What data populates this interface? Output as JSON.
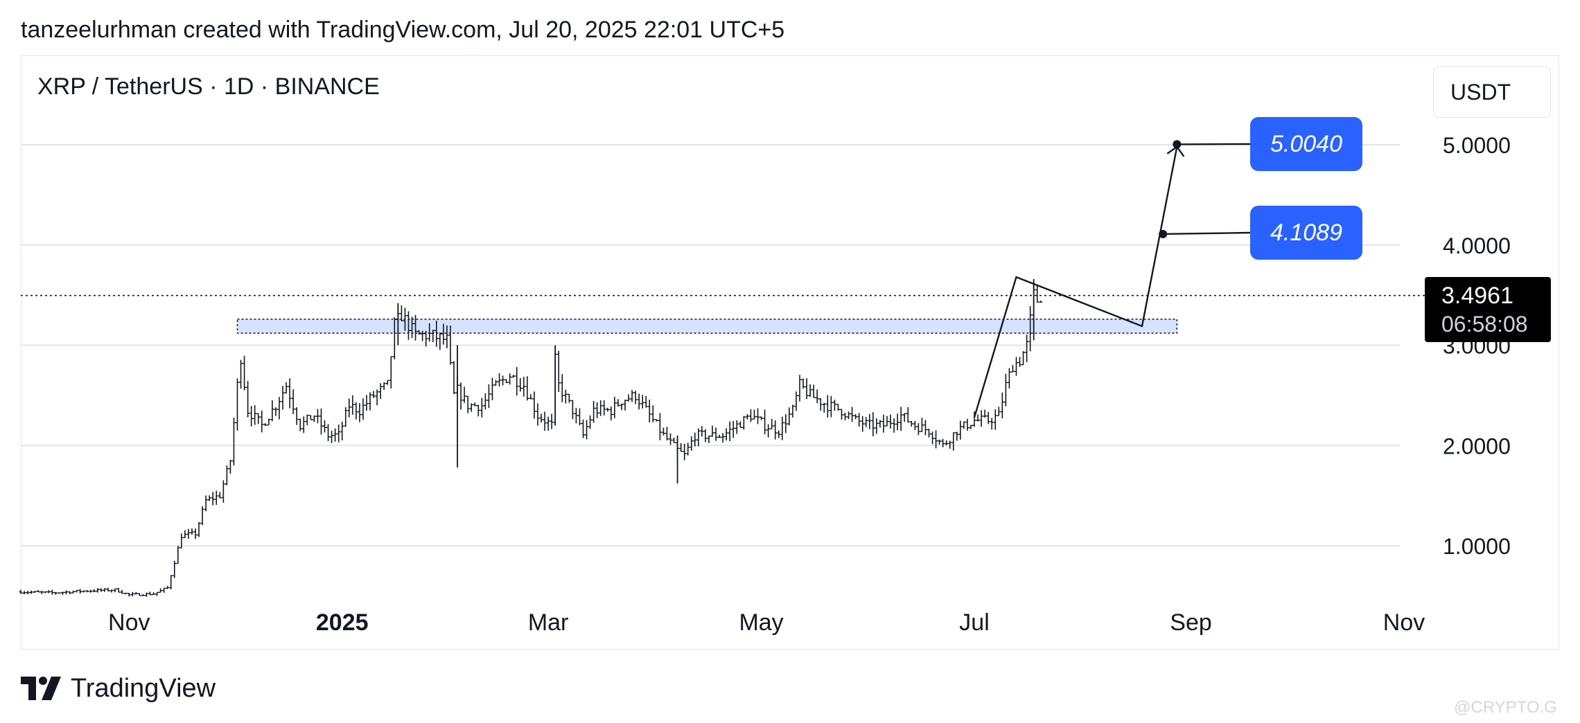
{
  "header": {
    "caption": "tanzeelurhman created with TradingView.com, Jul 20, 2025 22:01 UTC+5"
  },
  "chart": {
    "symbol_title": "XRP / TetherUS · 1D · BINANCE",
    "currency": "USDT",
    "last_price": "3.4961",
    "countdown": "06:58:08",
    "targets": [
      {
        "label": "5.0040",
        "value": 5.004
      },
      {
        "label": "4.1089",
        "value": 4.1089
      }
    ],
    "colors": {
      "accent": "#2962ff",
      "zone_fill": "#d6e2ff",
      "grid": "#e0e3eb",
      "bars": "#131722",
      "price_label_bg": "#000000"
    }
  },
  "footer": {
    "brand": "TradingView",
    "watermark": "@CRYPTO.G"
  },
  "chart_data": {
    "type": "ohlc-bar",
    "title": "XRP / TetherUS · 1D · BINANCE",
    "xlabel": "",
    "ylabel": "",
    "x_ticks": [
      {
        "label": "Nov",
        "date": "2024-11-01",
        "bold": false
      },
      {
        "label": "2025",
        "date": "2025-01-01",
        "bold": true
      },
      {
        "label": "Mar",
        "date": "2025-03-01",
        "bold": false
      },
      {
        "label": "May",
        "date": "2025-05-01",
        "bold": false
      },
      {
        "label": "Jul",
        "date": "2025-07-01",
        "bold": false
      },
      {
        "label": "Sep",
        "date": "2025-09-01",
        "bold": false
      },
      {
        "label": "Nov",
        "date": "2025-11-01",
        "bold": false
      }
    ],
    "y_ticks": [
      {
        "label": "1.0000",
        "value": 1.0
      },
      {
        "label": "2.0000",
        "value": 2.0
      },
      {
        "label": "3.0000",
        "value": 3.0
      },
      {
        "label": "4.0000",
        "value": 4.0
      },
      {
        "label": "5.0000",
        "value": 5.0
      }
    ],
    "ylim": [
      0.45,
      5.95
    ],
    "xlim": [
      "2024-10-01",
      "2025-11-01"
    ],
    "grid": "horizontal",
    "current_price": 3.4961,
    "support_zone": {
      "from": "2024-12-02",
      "to": "2025-08-28",
      "low": 3.12,
      "high": 3.26
    },
    "projection_path": [
      {
        "date": "2025-07-01",
        "price": 2.28
      },
      {
        "date": "2025-07-13",
        "price": 3.68
      },
      {
        "date": "2025-08-18",
        "price": 3.19
      },
      {
        "date": "2025-08-28",
        "price": 4.98
      }
    ],
    "target_markers": [
      {
        "date": "2025-08-28",
        "price": 5.004,
        "label": "5.0040"
      },
      {
        "date": "2025-08-24",
        "price": 4.1089,
        "label": "4.1089"
      }
    ],
    "price_path": [
      [
        "2024-10-01",
        0.54
      ],
      [
        "2024-10-10",
        0.53
      ],
      [
        "2024-10-20",
        0.55
      ],
      [
        "2024-10-28",
        0.56
      ],
      [
        "2024-11-01",
        0.51
      ],
      [
        "2024-11-08",
        0.52
      ],
      [
        "2024-11-12",
        0.58
      ],
      [
        "2024-11-16",
        1.1
      ],
      [
        "2024-11-20",
        1.12
      ],
      [
        "2024-11-23",
        1.45
      ],
      [
        "2024-11-27",
        1.5
      ],
      [
        "2024-11-30",
        1.85
      ],
      [
        "2024-12-02",
        2.6
      ],
      [
        "2024-12-03",
        2.88
      ],
      [
        "2024-12-05",
        2.35
      ],
      [
        "2024-12-09",
        2.2
      ],
      [
        "2024-12-13",
        2.4
      ],
      [
        "2024-12-16",
        2.6
      ],
      [
        "2024-12-20",
        2.2
      ],
      [
        "2024-12-24",
        2.3
      ],
      [
        "2024-12-28",
        2.1
      ],
      [
        "2024-12-31",
        2.1
      ],
      [
        "2025-01-03",
        2.4
      ],
      [
        "2025-01-06",
        2.35
      ],
      [
        "2025-01-10",
        2.5
      ],
      [
        "2025-01-14",
        2.6
      ],
      [
        "2025-01-16",
        3.2
      ],
      [
        "2025-01-18",
        3.3
      ],
      [
        "2025-01-22",
        3.1
      ],
      [
        "2025-01-26",
        3.1
      ],
      [
        "2025-01-31",
        3.05
      ],
      [
        "2025-02-02",
        2.5
      ],
      [
        "2025-02-03",
        2.55
      ],
      [
        "2025-02-06",
        2.4
      ],
      [
        "2025-02-10",
        2.4
      ],
      [
        "2025-02-14",
        2.6
      ],
      [
        "2025-02-18",
        2.7
      ],
      [
        "2025-02-22",
        2.6
      ],
      [
        "2025-02-26",
        2.3
      ],
      [
        "2025-03-02",
        2.2
      ],
      [
        "2025-03-03",
        2.85
      ],
      [
        "2025-03-04",
        2.6
      ],
      [
        "2025-03-08",
        2.35
      ],
      [
        "2025-03-11",
        2.1
      ],
      [
        "2025-03-14",
        2.35
      ],
      [
        "2025-03-19",
        2.35
      ],
      [
        "2025-03-22",
        2.45
      ],
      [
        "2025-03-26",
        2.5
      ],
      [
        "2025-03-30",
        2.3
      ],
      [
        "2025-04-03",
        2.1
      ],
      [
        "2025-04-07",
        1.95
      ],
      [
        "2025-04-09",
        1.9
      ],
      [
        "2025-04-12",
        2.1
      ],
      [
        "2025-04-16",
        2.1
      ],
      [
        "2025-04-20",
        2.1
      ],
      [
        "2025-04-24",
        2.2
      ],
      [
        "2025-04-28",
        2.3
      ],
      [
        "2025-05-02",
        2.2
      ],
      [
        "2025-05-06",
        2.15
      ],
      [
        "2025-05-10",
        2.35
      ],
      [
        "2025-05-12",
        2.6
      ],
      [
        "2025-05-15",
        2.5
      ],
      [
        "2025-05-20",
        2.4
      ],
      [
        "2025-05-24",
        2.35
      ],
      [
        "2025-05-28",
        2.25
      ],
      [
        "2025-06-01",
        2.2
      ],
      [
        "2025-06-05",
        2.2
      ],
      [
        "2025-06-10",
        2.3
      ],
      [
        "2025-06-14",
        2.2
      ],
      [
        "2025-06-18",
        2.15
      ],
      [
        "2025-06-22",
        2.0
      ],
      [
        "2025-06-26",
        2.15
      ],
      [
        "2025-07-01",
        2.25
      ],
      [
        "2025-07-05",
        2.25
      ],
      [
        "2025-07-08",
        2.3
      ],
      [
        "2025-07-10",
        2.6
      ],
      [
        "2025-07-12",
        2.8
      ],
      [
        "2025-07-14",
        2.85
      ],
      [
        "2025-07-16",
        3.0
      ],
      [
        "2025-07-18",
        3.5
      ],
      [
        "2025-07-19",
        3.45
      ],
      [
        "2025-07-20",
        3.4961
      ]
    ],
    "bars_note_free": true
  }
}
